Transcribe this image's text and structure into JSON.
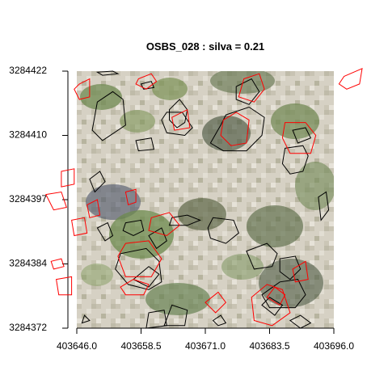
{
  "chart_data": {
    "type": "scatter",
    "title": "OSBS_028 : silva = 0.21",
    "xlabel": "",
    "ylabel": "",
    "xlim": [
      403646.0,
      403696.0
    ],
    "ylim": [
      3284372,
      3284422
    ],
    "x_ticks": [
      "403646.0",
      "403658.5",
      "403671.0",
      "403683.5",
      "403696.0"
    ],
    "y_ticks": [
      "3284422",
      "3284410",
      "3284397",
      "3284384",
      "3284372"
    ],
    "background": "aerial RGB image (OSBS forest plot)",
    "series": [
      {
        "color": "#000000",
        "polygons": [
          [
            [
              403650.0,
              3284421.8
            ],
            [
              403653.0,
              3284422.0
            ],
            [
              403654.0,
              3284421.5
            ],
            [
              403651.0,
              3284421.2
            ]
          ],
          [
            [
              403657.5,
              3284408.5
            ],
            [
              403660.5,
              3284409.0
            ],
            [
              403661.0,
              3284406.8
            ],
            [
              403658.0,
              3284406.5
            ]
          ],
          [
            [
              403658.5,
              3284419.5
            ],
            [
              403660.5,
              3284420.0
            ],
            [
              403661.0,
              3284418.8
            ],
            [
              403659.0,
              3284418.5
            ]
          ],
          [
            [
              403651.0,
              3284408.5
            ],
            [
              403649.0,
              3284410.5
            ],
            [
              403650.0,
              3284416.0
            ],
            [
              403653.0,
              3284418.0
            ],
            [
              403655.0,
              3284416.5
            ],
            [
              403655.5,
              3284411.5
            ]
          ],
          [
            [
              403664.0,
              3284414.5
            ],
            [
              403666.0,
              3284416.5
            ],
            [
              403667.5,
              3284414.5
            ],
            [
              403667.0,
              3284412.0
            ],
            [
              403665.5,
              3284411.0
            ],
            [
              403664.0,
              3284412.5
            ]
          ],
          [
            [
              403663.5,
              3284414.0
            ],
            [
              403666.5,
              3284414.0
            ],
            [
              403668.5,
              3284411.0
            ],
            [
              403667.0,
              3284409.5
            ],
            [
              403663.5,
              3284410.0
            ],
            [
              403662.5,
              3284412.5
            ]
          ],
          [
            [
              403675.0,
              3284413.5
            ],
            [
              403679.5,
              3284415.0
            ],
            [
              403682.5,
              3284413.0
            ],
            [
              403682.0,
              3284409.5
            ],
            [
              403679.0,
              3284406.5
            ],
            [
              403674.5,
              3284406.5
            ],
            [
              403672.0,
              3284408.0
            ],
            [
              403674.0,
              3284411.5
            ]
          ],
          [
            [
              403677.0,
              3284419.0
            ],
            [
              403680.0,
              3284420.5
            ],
            [
              403681.5,
              3284418.0
            ],
            [
              403679.5,
              3284415.5
            ],
            [
              403677.0,
              3284416.5
            ]
          ],
          [
            [
              403686.5,
              3284407.0
            ],
            [
              403690.0,
              3284407.5
            ],
            [
              403691.0,
              3284405.5
            ],
            [
              403690.0,
              3284402.5
            ],
            [
              403687.5,
              3284402.0
            ],
            [
              403686.0,
              3284404.0
            ]
          ],
          [
            [
              403688.0,
              3284410.5
            ],
            [
              403690.5,
              3284411.0
            ],
            [
              403691.5,
              3284409.0
            ],
            [
              403689.0,
              3284408.0
            ]
          ],
          [
            [
              403648.5,
              3284401.0
            ],
            [
              403650.5,
              3284402.5
            ],
            [
              403651.5,
              3284400.5
            ],
            [
              403649.5,
              3284398.5
            ]
          ],
          [
            [
              403650.0,
              3284391.5
            ],
            [
              403652.0,
              3284392.5
            ],
            [
              403653.0,
              3284390.0
            ],
            [
              403651.5,
              3284389.0
            ]
          ],
          [
            [
              403655.5,
              3284392.5
            ],
            [
              403658.5,
              3284393.0
            ],
            [
              403659.0,
              3284391.0
            ],
            [
              403657.0,
              3284390.0
            ],
            [
              403655.0,
              3284391.0
            ]
          ],
          [
            [
              403660.0,
              3284390.0
            ],
            [
              403662.5,
              3284391.5
            ],
            [
              403663.5,
              3284389.0
            ],
            [
              403661.5,
              3284387.5
            ]
          ],
          [
            [
              403654.5,
              3284386.5
            ],
            [
              403653.5,
              3284383.5
            ],
            [
              403656.0,
              3284380.5
            ],
            [
              403660.0,
              3284379.5
            ],
            [
              403662.5,
              3284381.0
            ],
            [
              403662.0,
              3284385.0
            ],
            [
              403659.5,
              3284387.5
            ]
          ],
          [
            [
              403657.0,
              3284381.5
            ],
            [
              403660.0,
              3284384.0
            ],
            [
              403662.0,
              3284382.5
            ],
            [
              403660.0,
              3284380.0
            ]
          ],
          [
            [
              403664.5,
              3284393.5
            ],
            [
              403667.5,
              3284394.0
            ],
            [
              403670.0,
              3284393.0
            ],
            [
              403667.5,
              3284392.0
            ],
            [
              403664.0,
              3284392.0
            ]
          ],
          [
            [
              403671.5,
              3284391.5
            ],
            [
              403672.5,
              3284393.5
            ],
            [
              403676.5,
              3284393.0
            ],
            [
              403677.5,
              3284390.5
            ],
            [
              403675.0,
              3284388.5
            ],
            [
              403672.0,
              3284389.5
            ]
          ],
          [
            [
              403679.0,
              3284387.0
            ],
            [
              403683.0,
              3284388.5
            ],
            [
              403685.0,
              3284386.5
            ],
            [
              403684.0,
              3284384.0
            ],
            [
              403680.5,
              3284383.5
            ]
          ],
          [
            [
              403685.5,
              3284385.5
            ],
            [
              403688.5,
              3284386.0
            ],
            [
              403689.5,
              3284383.5
            ],
            [
              403687.5,
              3284381.5
            ],
            [
              403685.5,
              3284383.0
            ]
          ],
          [
            [
              403682.0,
              3284378.5
            ],
            [
              403685.5,
              3284381.0
            ],
            [
              403689.0,
              3284381.5
            ],
            [
              403690.5,
              3284378.5
            ],
            [
              403688.5,
              3284376.0
            ],
            [
              403683.5,
              3284376.0
            ]
          ],
          [
            [
              403682.0,
              3284376.5
            ],
            [
              403683.5,
              3284378.0
            ],
            [
              403686.0,
              3284376.5
            ],
            [
              403684.5,
              3284374.5
            ]
          ],
          [
            [
              403687.5,
              3284373.5
            ],
            [
              403689.5,
              3284374.5
            ],
            [
              403691.5,
              3284373.0
            ],
            [
              403689.5,
              3284372.0
            ]
          ],
          [
            [
              403672.5,
              3284373.5
            ],
            [
              403674.0,
              3284374.5
            ],
            [
              403675.0,
              3284373.0
            ],
            [
              403673.5,
              3284372.5
            ]
          ],
          [
            [
              403663.0,
              3284372.5
            ],
            [
              403664.5,
              3284376.5
            ],
            [
              403667.5,
              3284375.5
            ],
            [
              403667.0,
              3284372.5
            ]
          ],
          [
            [
              403659.5,
              3284372.0
            ],
            [
              403660.0,
              3284375.0
            ],
            [
              403663.0,
              3284375.5
            ],
            [
              403663.5,
              3284372.5
            ]
          ],
          [
            [
              403647.0,
              3284373.0
            ],
            [
              403647.5,
              3284374.5
            ],
            [
              403648.5,
              3284373.5
            ]
          ],
          [
            [
              403693.0,
              3284397.5
            ],
            [
              403694.5,
              3284398.5
            ],
            [
              403695.0,
              3284395.0
            ],
            [
              403693.5,
              3284393.0
            ]
          ]
        ]
      },
      {
        "color": "#ff0000",
        "polygons": [
          [
            [
              403658.0,
              3284420.5
            ],
            [
              403660.5,
              3284421.5
            ],
            [
              403661.5,
              3284420.0
            ],
            [
              403659.5,
              3284418.5
            ],
            [
              403657.5,
              3284419.5
            ]
          ],
          [
            [
              403646.5,
              3284419.5
            ],
            [
              403648.5,
              3284420.5
            ],
            [
              403648.5,
              3284417.0
            ],
            [
              403646.5,
              3284416.5
            ],
            [
              403645.5,
              3284418.5
            ]
          ],
          [
            [
              403664.5,
              3284413.0
            ],
            [
              403667.5,
              3284414.5
            ],
            [
              403668.0,
              3284411.0
            ],
            [
              403665.0,
              3284410.5
            ]
          ],
          [
            [
              403674.5,
              3284412.5
            ],
            [
              403677.0,
              3284414.0
            ],
            [
              403679.5,
              3284412.5
            ],
            [
              403679.0,
              3284408.0
            ],
            [
              403676.0,
              3284407.5
            ],
            [
              403674.0,
              3284409.5
            ]
          ],
          [
            [
              403678.5,
              3284420.5
            ],
            [
              403681.5,
              3284421.5
            ],
            [
              403682.5,
              3284418.5
            ],
            [
              403680.5,
              3284416.0
            ],
            [
              403677.5,
              3284417.0
            ]
          ],
          [
            [
              403686.5,
              3284412.0
            ],
            [
              403690.5,
              3284412.0
            ],
            [
              403692.5,
              3284409.5
            ],
            [
              403691.5,
              3284406.0
            ],
            [
              403687.5,
              3284406.0
            ],
            [
              403686.0,
              3284409.0
            ]
          ],
          [
            [
              403698.0,
              3284421.0
            ],
            [
              403701.5,
              3284422.5
            ],
            [
              403701.0,
              3284419.5
            ],
            [
              403698.5,
              3284418.5
            ],
            [
              403697.0,
              3284419.5
            ]
          ],
          [
            [
              403643.0,
              3284402.5
            ],
            [
              403645.5,
              3284403.0
            ],
            [
              403645.5,
              3284400.0
            ],
            [
              403643.0,
              3284399.5
            ]
          ],
          [
            [
              403640.0,
              3284398.0
            ],
            [
              403643.0,
              3284398.5
            ],
            [
              403644.0,
              3284395.5
            ],
            [
              403641.5,
              3284395.0
            ]
          ],
          [
            [
              403655.5,
              3284398.5
            ],
            [
              403657.5,
              3284399.0
            ],
            [
              403657.5,
              3284396.5
            ],
            [
              403656.0,
              3284396.0
            ]
          ],
          [
            [
              403648.0,
              3284396.0
            ],
            [
              403650.0,
              3284397.0
            ],
            [
              403650.5,
              3284394.0
            ],
            [
              403648.5,
              3284393.5
            ]
          ],
          [
            [
              403645.0,
              3284393.0
            ],
            [
              403647.5,
              3284393.5
            ],
            [
              403648.0,
              3284390.5
            ],
            [
              403645.5,
              3284390.0
            ]
          ],
          [
            [
              403660.5,
              3284393.5
            ],
            [
              403664.0,
              3284394.5
            ],
            [
              403666.0,
              3284392.0
            ],
            [
              403663.5,
              3284390.0
            ],
            [
              403660.0,
              3284391.0
            ]
          ],
          [
            [
              403654.0,
              3284386.0
            ],
            [
              403655.5,
              3284388.5
            ],
            [
              403660.0,
              3284389.0
            ],
            [
              403662.5,
              3284385.5
            ],
            [
              403660.5,
              3284382.0
            ],
            [
              403655.5,
              3284382.0
            ]
          ],
          [
            [
              403654.5,
              3284380.0
            ],
            [
              403657.0,
              3284381.5
            ],
            [
              403660.0,
              3284380.5
            ],
            [
              403659.0,
              3284378.5
            ],
            [
              403655.5,
              3284378.5
            ]
          ],
          [
            [
              403671.0,
              3284377.0
            ],
            [
              403673.5,
              3284379.0
            ],
            [
              403675.0,
              3284377.0
            ],
            [
              403673.0,
              3284375.0
            ]
          ],
          [
            [
              403683.0,
              3284378.0
            ],
            [
              403684.5,
              3284380.0
            ],
            [
              403686.5,
              3284378.5
            ],
            [
              403685.5,
              3284376.5
            ]
          ],
          [
            [
              403688.0,
              3284383.5
            ],
            [
              403690.5,
              3284385.0
            ],
            [
              403691.0,
              3284381.5
            ],
            [
              403688.5,
              3284381.0
            ]
          ],
          [
            [
              403680.0,
              3284378.0
            ],
            [
              403683.0,
              3284380.5
            ],
            [
              403686.0,
              3284379.5
            ],
            [
              403687.5,
              3284375.0
            ],
            [
              403684.0,
              3284372.5
            ],
            [
              403680.5,
              3284373.5
            ]
          ],
          [
            [
              403641.0,
              3284385.0
            ],
            [
              403643.0,
              3284385.5
            ],
            [
              403643.5,
              3284384.0
            ],
            [
              403641.5,
              3284383.5
            ]
          ],
          [
            [
              403642.0,
              3284381.5
            ],
            [
              403645.0,
              3284382.0
            ],
            [
              403645.0,
              3284378.5
            ],
            [
              403642.5,
              3284378.5
            ]
          ]
        ]
      }
    ]
  }
}
